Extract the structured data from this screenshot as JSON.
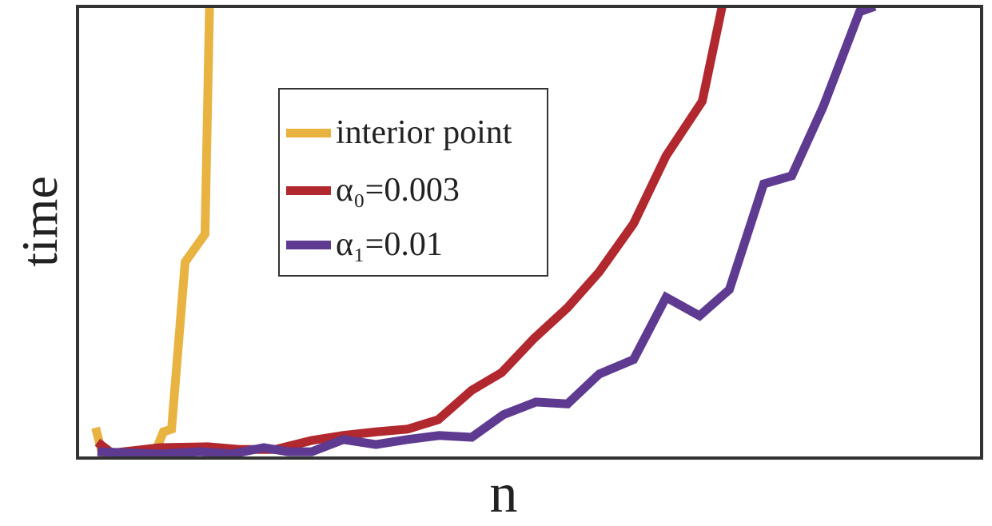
{
  "chart_data": {
    "type": "line",
    "title": "",
    "xlabel": "n",
    "ylabel": "time",
    "xlim": [
      0,
      100
    ],
    "ylim": [
      0,
      100
    ],
    "grid": false,
    "legend_position": "upper-center-left",
    "series": [
      {
        "name": "interior point",
        "color": "#E8B341",
        "x": [
          2.0,
          2.8,
          5.6,
          8.6,
          9.5,
          10.4,
          11.9,
          14.1,
          14.6
        ],
        "y": [
          6.7,
          0.5,
          0.2,
          1.4,
          5.8,
          6.4,
          43.4,
          49.6,
          100
        ]
      },
      {
        "name": "α₀=0.003",
        "color": "#B1282E",
        "x": [
          2.2,
          3.8,
          9.1,
          14.4,
          17.9,
          21.9,
          25.9,
          29.4,
          33.0,
          36.5,
          39.9,
          43.6,
          46.9,
          50.5,
          54.2,
          57.7,
          61.5,
          65.1,
          69.1,
          71.3
        ],
        "y": [
          3.5,
          1.1,
          2.3,
          2.5,
          1.9,
          1.9,
          3.9,
          5.0,
          5.8,
          6.4,
          8.5,
          15.0,
          18.9,
          26.5,
          33.3,
          41.2,
          51.9,
          66.9,
          79.0,
          100
        ]
      },
      {
        "name": "α₁=0.01",
        "color": "#5E3A91",
        "x": [
          2.2,
          9.1,
          13.5,
          17.1,
          20.6,
          23.3,
          25.9,
          29.4,
          33.0,
          36.5,
          40.0,
          43.6,
          47.1,
          50.7,
          54.2,
          57.7,
          61.5,
          65.1,
          68.8,
          72.1,
          75.9,
          79.0,
          82.5,
          86.5,
          88.2
        ],
        "y": [
          1.4,
          0.9,
          1.4,
          0.9,
          2.3,
          1.4,
          1.4,
          4.1,
          3.0,
          4.1,
          5.0,
          4.6,
          9.6,
          12.4,
          12.0,
          18.6,
          21.8,
          35.6,
          31.5,
          37.3,
          60.7,
          62.5,
          77.9,
          98.8,
          100
        ]
      }
    ]
  }
}
